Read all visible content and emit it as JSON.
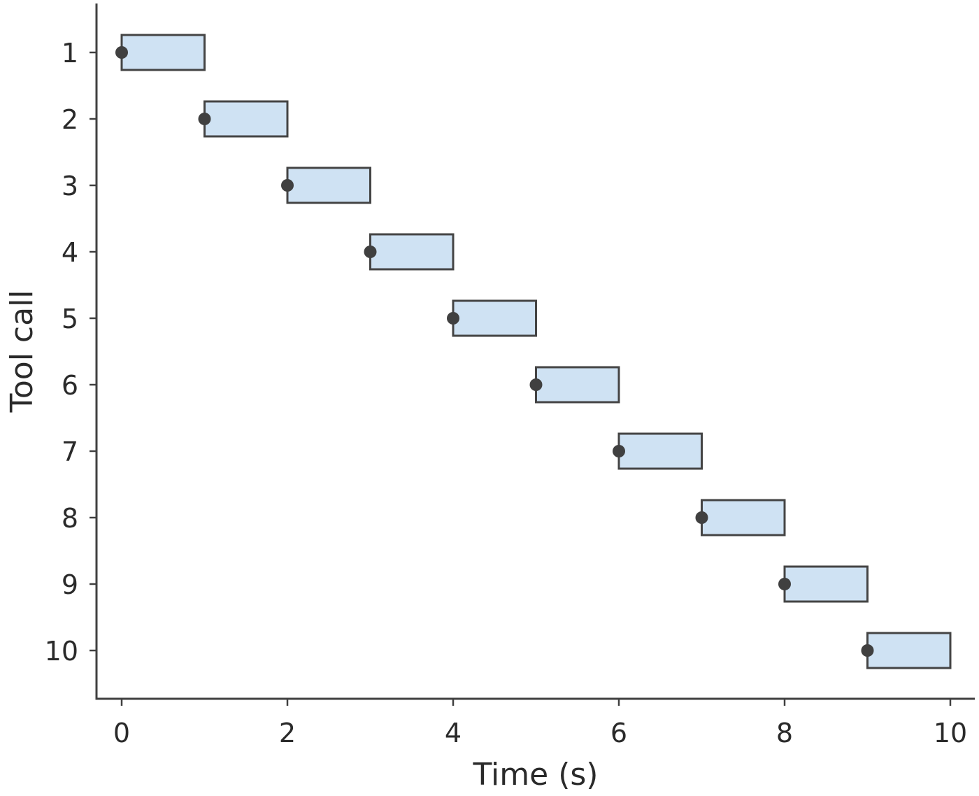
{
  "chart_data": {
    "type": "bar",
    "orientation": "horizontal",
    "title": "",
    "xlabel": "Time (s)",
    "ylabel": "Tool call",
    "xlim": [
      -0.3,
      10.3
    ],
    "ylim": [
      0.5,
      10.5
    ],
    "grid": false,
    "x_ticks": [
      0,
      2,
      4,
      6,
      8,
      10
    ],
    "y_categories": [
      "1",
      "2",
      "3",
      "4",
      "5",
      "6",
      "7",
      "8",
      "9",
      "10"
    ],
    "bars": [
      {
        "call": "1",
        "start": 0,
        "end": 1
      },
      {
        "call": "2",
        "start": 1,
        "end": 2
      },
      {
        "call": "3",
        "start": 2,
        "end": 3
      },
      {
        "call": "4",
        "start": 3,
        "end": 4
      },
      {
        "call": "5",
        "start": 4,
        "end": 5
      },
      {
        "call": "6",
        "start": 5,
        "end": 6
      },
      {
        "call": "7",
        "start": 6,
        "end": 7
      },
      {
        "call": "8",
        "start": 7,
        "end": 8
      },
      {
        "call": "9",
        "start": 8,
        "end": 9
      },
      {
        "call": "10",
        "start": 9,
        "end": 10
      }
    ],
    "colors": {
      "bar_fill": "#cfe2f3",
      "bar_edge": "#444444",
      "marker": "#404040"
    }
  }
}
